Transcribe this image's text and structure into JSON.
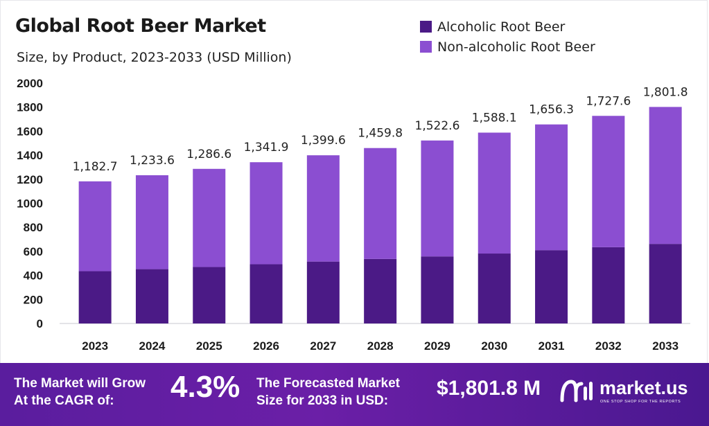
{
  "colors": {
    "alcoholic": "#4b1a86",
    "non_alcoholic": "#8b4ed1",
    "banner": "#5a1d9e"
  },
  "chart_data": {
    "type": "bar",
    "stacked": true,
    "title": "Global Root Beer Market",
    "subtitle": "Size, by Product, 2023-2033 (USD Million)",
    "categories": [
      "2023",
      "2024",
      "2025",
      "2026",
      "2027",
      "2028",
      "2029",
      "2030",
      "2031",
      "2032",
      "2033"
    ],
    "series": [
      {
        "name": "Alcoholic Root Beer",
        "values": [
          435,
          452,
          470,
          493,
          515,
          537,
          558,
          582,
          610,
          635,
          662
        ]
      },
      {
        "name": "Non-alcoholic Root Beer",
        "values": [
          747.7,
          781.6,
          816.6,
          848.9,
          884.6,
          922.8,
          964.6,
          1006.1,
          1046.3,
          1092.6,
          1139.8
        ]
      }
    ],
    "totals": [
      "1,182.7",
      "1,233.6",
      "1,286.6",
      "1,341.9",
      "1,399.6",
      "1,459.8",
      "1,522.6",
      "1,588.1",
      "1,656.3",
      "1,727.6",
      "1,801.8"
    ],
    "total_values": [
      1182.7,
      1233.6,
      1286.6,
      1341.9,
      1399.6,
      1459.8,
      1522.6,
      1588.1,
      1656.3,
      1727.6,
      1801.8
    ],
    "yticks": [
      "0",
      "200",
      "400",
      "600",
      "800",
      "1000",
      "1200",
      "1400",
      "1600",
      "1800",
      "2000"
    ],
    "ylim": [
      0,
      2000
    ],
    "legend_position": "top-right",
    "grid": false
  },
  "banner": {
    "grow_line1": "The Market will Grow",
    "grow_line2": "At the CAGR of:",
    "cagr": "4.3%",
    "forecast_line1": "The Forecasted Market",
    "forecast_line2": "Size for 2033 in USD:",
    "forecast_value": "$1,801.8 M"
  },
  "brand": {
    "name": "market.us",
    "tagline": "ONE STOP SHOP FOR THE REPORTS",
    "logo_icon": "market-us-logo-icon"
  }
}
